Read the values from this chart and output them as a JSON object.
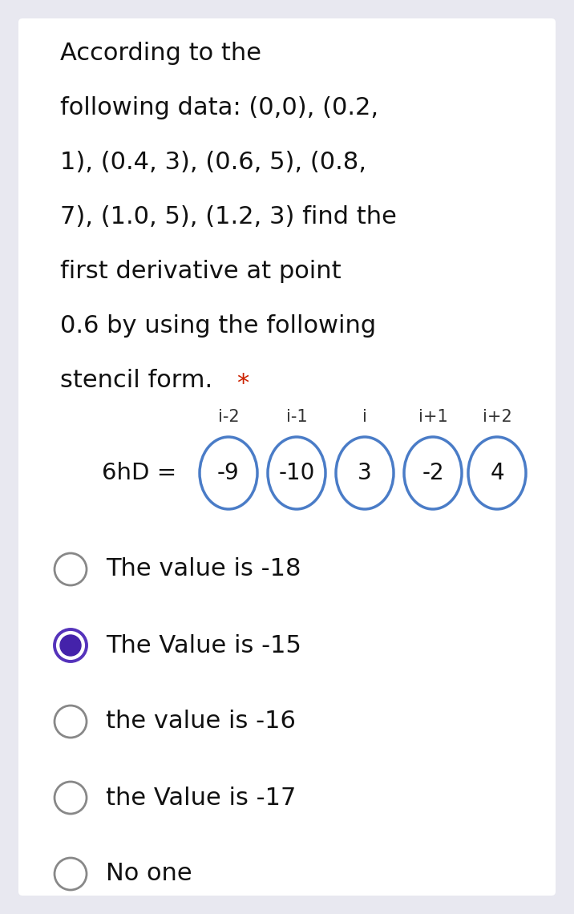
{
  "background_color": "#e8e8f0",
  "card_color": "#ffffff",
  "question_lines": [
    "According to the",
    "following data: (0,0), (0.2,",
    "1), (0.4, 3), (0.6, 5), (0.8,",
    "7), (1.0, 5), (1.2, 3) find the",
    "first derivative at point",
    "0.6 by using the following",
    "stencil form."
  ],
  "star_color": "#cc2200",
  "stencil_labels": [
    "i-2",
    "i-1",
    "i",
    "i+1",
    "i+2"
  ],
  "stencil_values": [
    "-9",
    "-10",
    "3",
    "-2",
    "4"
  ],
  "stencil_prefix": "6hD =",
  "circle_edge_color": "#4a7cc7",
  "circle_face_color": "#ffffff",
  "options": [
    {
      "text": "The value is -18",
      "selected": false
    },
    {
      "text": "The Value is -15",
      "selected": true
    },
    {
      "text": "the value is -16",
      "selected": false
    },
    {
      "text": "the Value is -17",
      "selected": false
    },
    {
      "text": "No one",
      "selected": false
    }
  ],
  "radio_unsel_color": "#888888",
  "radio_sel_outer": "#5533bb",
  "radio_sel_inner": "#4422aa",
  "option_text_color": "#111111",
  "text_fontsize": 22,
  "option_fontsize": 22,
  "label_fontsize": 15,
  "value_fontsize": 20,
  "prefix_fontsize": 21
}
